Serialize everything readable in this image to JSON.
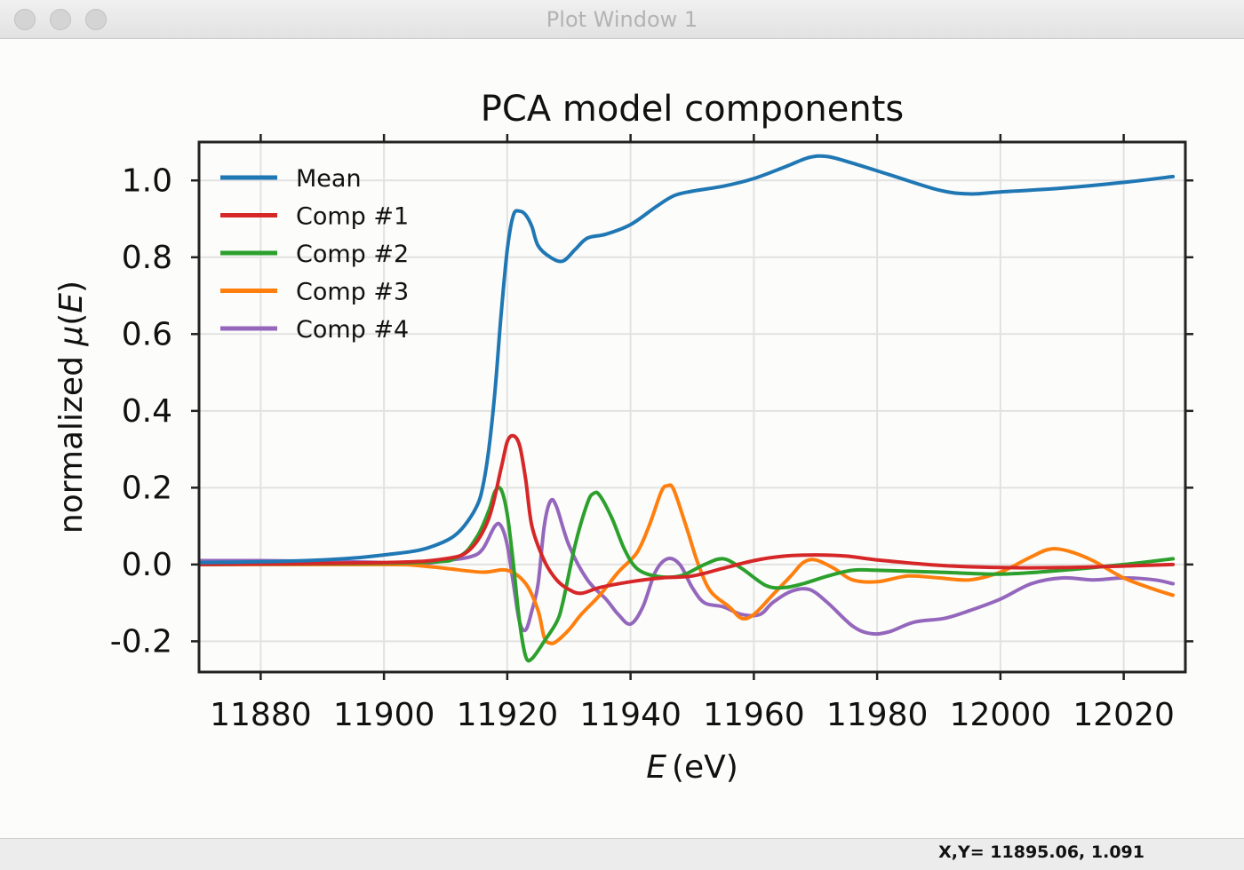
{
  "window": {
    "title": "Plot Window 1"
  },
  "status": {
    "coords": "X,Y= 11895.06, 1.091"
  },
  "chart_data": {
    "type": "line",
    "title": "PCA model components",
    "xlabel": "E (eV)",
    "xlabel_italic": "E",
    "xlabel_unit": "(eV)",
    "ylabel": "normalized μ(E)",
    "ylabel_prefix": "normalized ",
    "ylabel_mu": "μ",
    "ylabel_paren_open": "(",
    "ylabel_E": "E",
    "ylabel_paren_close": ")",
    "xlim": [
      11870,
      12030
    ],
    "ylim": [
      -0.28,
      1.1
    ],
    "xticks": [
      11880,
      11900,
      11920,
      11940,
      11960,
      11980,
      12000,
      12020
    ],
    "xtick_labels": [
      "11880",
      "11900",
      "11920",
      "11940",
      "11960",
      "11980",
      "12000",
      "12020"
    ],
    "yticks": [
      -0.2,
      0.0,
      0.2,
      0.4,
      0.6,
      0.8,
      1.0
    ],
    "ytick_labels": [
      "-0.2",
      "0.0",
      "0.2",
      "0.4",
      "0.6",
      "0.8",
      "1.0"
    ],
    "grid": true,
    "legend_position": "top-left",
    "series": [
      {
        "name": "Mean",
        "color": "#1f77b4",
        "points": [
          [
            11870,
            0.005
          ],
          [
            11880,
            0.007
          ],
          [
            11890,
            0.012
          ],
          [
            11896,
            0.018
          ],
          [
            11900,
            0.025
          ],
          [
            11905,
            0.035
          ],
          [
            11908,
            0.048
          ],
          [
            11911,
            0.07
          ],
          [
            11913,
            0.1
          ],
          [
            11915,
            0.15
          ],
          [
            11916,
            0.2
          ],
          [
            11917,
            0.3
          ],
          [
            11918,
            0.45
          ],
          [
            11919,
            0.65
          ],
          [
            11920,
            0.82
          ],
          [
            11921,
            0.91
          ],
          [
            11922,
            0.92
          ],
          [
            11923,
            0.91
          ],
          [
            11924,
            0.88
          ],
          [
            11925,
            0.83
          ],
          [
            11927,
            0.8
          ],
          [
            11929,
            0.79
          ],
          [
            11931,
            0.82
          ],
          [
            11933,
            0.85
          ],
          [
            11936,
            0.86
          ],
          [
            11940,
            0.885
          ],
          [
            11944,
            0.93
          ],
          [
            11947,
            0.96
          ],
          [
            11950,
            0.972
          ],
          [
            11955,
            0.985
          ],
          [
            11960,
            1.005
          ],
          [
            11965,
            1.035
          ],
          [
            11969,
            1.06
          ],
          [
            11972,
            1.062
          ],
          [
            11976,
            1.045
          ],
          [
            11982,
            1.015
          ],
          [
            11990,
            0.975
          ],
          [
            11995,
            0.965
          ],
          [
            12000,
            0.97
          ],
          [
            12010,
            0.98
          ],
          [
            12020,
            0.995
          ],
          [
            12028,
            1.01
          ]
        ]
      },
      {
        "name": "Comp #1",
        "color": "#d62728",
        "points": [
          [
            11870,
            0.0
          ],
          [
            11900,
            0.005
          ],
          [
            11910,
            0.015
          ],
          [
            11914,
            0.04
          ],
          [
            11917,
            0.12
          ],
          [
            11919,
            0.25
          ],
          [
            11920,
            0.32
          ],
          [
            11921,
            0.335
          ],
          [
            11922,
            0.31
          ],
          [
            11923,
            0.22
          ],
          [
            11924,
            0.1
          ],
          [
            11926,
            0.01
          ],
          [
            11928,
            -0.04
          ],
          [
            11930,
            -0.065
          ],
          [
            11932,
            -0.075
          ],
          [
            11935,
            -0.06
          ],
          [
            11940,
            -0.045
          ],
          [
            11945,
            -0.035
          ],
          [
            11950,
            -0.03
          ],
          [
            11955,
            -0.01
          ],
          [
            11960,
            0.01
          ],
          [
            11965,
            0.022
          ],
          [
            11970,
            0.025
          ],
          [
            11975,
            0.022
          ],
          [
            11980,
            0.012
          ],
          [
            11990,
            -0.002
          ],
          [
            12000,
            -0.008
          ],
          [
            12010,
            -0.008
          ],
          [
            12020,
            -0.004
          ],
          [
            12028,
            0.0
          ]
        ]
      },
      {
        "name": "Comp #2",
        "color": "#2ca02c",
        "points": [
          [
            11870,
            0.0
          ],
          [
            11905,
            0.005
          ],
          [
            11912,
            0.02
          ],
          [
            11915,
            0.07
          ],
          [
            11917,
            0.14
          ],
          [
            11918,
            0.19
          ],
          [
            11919,
            0.195
          ],
          [
            11920,
            0.13
          ],
          [
            11921,
            0.0
          ],
          [
            11922,
            -0.15
          ],
          [
            11923,
            -0.24
          ],
          [
            11924,
            -0.245
          ],
          [
            11926,
            -0.2
          ],
          [
            11928,
            -0.15
          ],
          [
            11929,
            -0.1
          ],
          [
            11931,
            0.05
          ],
          [
            11933,
            0.16
          ],
          [
            11934,
            0.185
          ],
          [
            11935,
            0.18
          ],
          [
            11937,
            0.12
          ],
          [
            11939,
            0.04
          ],
          [
            11941,
            -0.01
          ],
          [
            11944,
            -0.03
          ],
          [
            11948,
            -0.03
          ],
          [
            11952,
            0.0
          ],
          [
            11955,
            0.015
          ],
          [
            11958,
            -0.01
          ],
          [
            11962,
            -0.055
          ],
          [
            11965,
            -0.06
          ],
          [
            11968,
            -0.05
          ],
          [
            11972,
            -0.03
          ],
          [
            11976,
            -0.015
          ],
          [
            11980,
            -0.015
          ],
          [
            11990,
            -0.02
          ],
          [
            12000,
            -0.025
          ],
          [
            12010,
            -0.015
          ],
          [
            12020,
            0.0
          ],
          [
            12028,
            0.015
          ]
        ]
      },
      {
        "name": "Comp #3",
        "color": "#ff7f0e",
        "points": [
          [
            11870,
            0.0
          ],
          [
            11900,
            0.0
          ],
          [
            11905,
            -0.002
          ],
          [
            11910,
            -0.01
          ],
          [
            11916,
            -0.02
          ],
          [
            11920,
            -0.015
          ],
          [
            11923,
            -0.05
          ],
          [
            11925,
            -0.12
          ],
          [
            11926,
            -0.19
          ],
          [
            11927,
            -0.205
          ],
          [
            11928,
            -0.2
          ],
          [
            11930,
            -0.17
          ],
          [
            11932,
            -0.13
          ],
          [
            11935,
            -0.08
          ],
          [
            11938,
            -0.02
          ],
          [
            11941,
            0.03
          ],
          [
            11943,
            0.1
          ],
          [
            11945,
            0.19
          ],
          [
            11946,
            0.205
          ],
          [
            11947,
            0.195
          ],
          [
            11949,
            0.1
          ],
          [
            11951,
            0.0
          ],
          [
            11953,
            -0.07
          ],
          [
            11956,
            -0.11
          ],
          [
            11958,
            -0.14
          ],
          [
            11960,
            -0.13
          ],
          [
            11963,
            -0.08
          ],
          [
            11966,
            -0.03
          ],
          [
            11968,
            0.005
          ],
          [
            11970,
            0.012
          ],
          [
            11973,
            -0.01
          ],
          [
            11976,
            -0.04
          ],
          [
            11980,
            -0.045
          ],
          [
            11985,
            -0.03
          ],
          [
            11990,
            -0.035
          ],
          [
            11995,
            -0.04
          ],
          [
            12000,
            -0.02
          ],
          [
            12005,
            0.02
          ],
          [
            12008,
            0.04
          ],
          [
            12011,
            0.035
          ],
          [
            12015,
            0.01
          ],
          [
            12020,
            -0.035
          ],
          [
            12025,
            -0.065
          ],
          [
            12028,
            -0.08
          ]
        ]
      },
      {
        "name": "Comp #4",
        "color": "#9467bd",
        "points": [
          [
            11870,
            0.01
          ],
          [
            11880,
            0.01
          ],
          [
            11890,
            0.008
          ],
          [
            11900,
            0.005
          ],
          [
            11905,
            0.0
          ],
          [
            11910,
            0.01
          ],
          [
            11914,
            0.02
          ],
          [
            11916,
            0.04
          ],
          [
            11918,
            0.1
          ],
          [
            11919,
            0.1
          ],
          [
            11920,
            0.05
          ],
          [
            11921,
            -0.05
          ],
          [
            11922,
            -0.15
          ],
          [
            11923,
            -0.17
          ],
          [
            11924,
            -0.12
          ],
          [
            11925,
            -0.05
          ],
          [
            11926,
            0.1
          ],
          [
            11927,
            0.165
          ],
          [
            11928,
            0.15
          ],
          [
            11930,
            0.05
          ],
          [
            11933,
            -0.04
          ],
          [
            11936,
            -0.09
          ],
          [
            11938,
            -0.13
          ],
          [
            11940,
            -0.155
          ],
          [
            11942,
            -0.11
          ],
          [
            11944,
            -0.02
          ],
          [
            11946,
            0.015
          ],
          [
            11948,
            0.0
          ],
          [
            11950,
            -0.06
          ],
          [
            11952,
            -0.1
          ],
          [
            11955,
            -0.11
          ],
          [
            11958,
            -0.13
          ],
          [
            11961,
            -0.13
          ],
          [
            11963,
            -0.1
          ],
          [
            11966,
            -0.07
          ],
          [
            11969,
            -0.065
          ],
          [
            11972,
            -0.1
          ],
          [
            11976,
            -0.16
          ],
          [
            11979,
            -0.18
          ],
          [
            11982,
            -0.175
          ],
          [
            11986,
            -0.15
          ],
          [
            11991,
            -0.14
          ],
          [
            11995,
            -0.12
          ],
          [
            12000,
            -0.09
          ],
          [
            12005,
            -0.05
          ],
          [
            12010,
            -0.035
          ],
          [
            12015,
            -0.04
          ],
          [
            12020,
            -0.035
          ],
          [
            12025,
            -0.04
          ],
          [
            12028,
            -0.05
          ]
        ]
      }
    ]
  }
}
